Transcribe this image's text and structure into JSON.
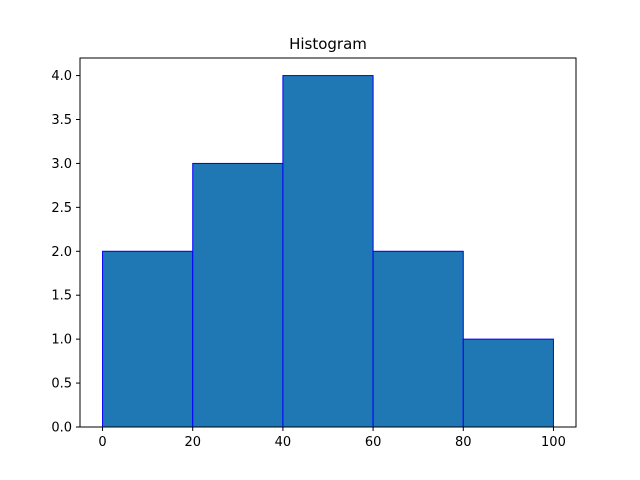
{
  "chart_data": {
    "type": "bar",
    "title": "Histogram",
    "xlabel": "",
    "ylabel": "",
    "bins": [
      {
        "start": 0,
        "end": 20,
        "count": 2
      },
      {
        "start": 20,
        "end": 40,
        "count": 3
      },
      {
        "start": 40,
        "end": 60,
        "count": 4
      },
      {
        "start": 60,
        "end": 80,
        "count": 2
      },
      {
        "start": 80,
        "end": 100,
        "count": 1
      }
    ],
    "xlim": [
      -5,
      105
    ],
    "ylim": [
      0,
      4.2
    ],
    "xticks": [
      0,
      20,
      40,
      60,
      80,
      100
    ],
    "yticks": [
      0.0,
      0.5,
      1.0,
      1.5,
      2.0,
      2.5,
      3.0,
      3.5,
      4.0
    ],
    "ytick_labels": [
      "0.0",
      "0.5",
      "1.0",
      "1.5",
      "2.0",
      "2.5",
      "3.0",
      "3.5",
      "4.0"
    ],
    "bar_fill": "#1f77b4",
    "bar_edge": "#0000ff",
    "grid": false,
    "legend": "none"
  }
}
